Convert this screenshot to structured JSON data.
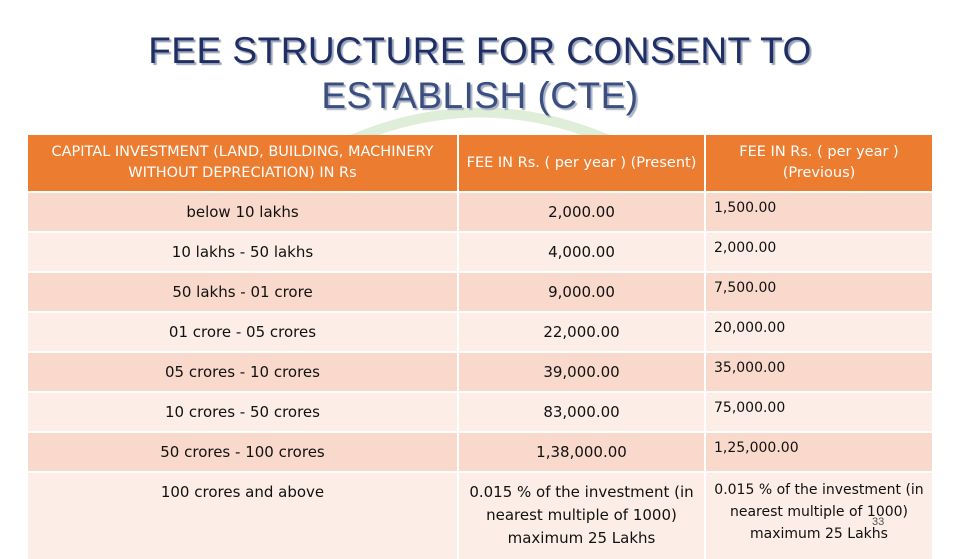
{
  "title": {
    "line1": "FEE STRUCTURE FOR CONSENT TO",
    "line2": "ESTABLISH (CTE)"
  },
  "table": {
    "headers": [
      "CAPITAL INVESTMENT (LAND, BUILDING, MACHINERY WITHOUT DEPRECIATION) IN Rs",
      "FEE IN Rs. ( per year ) (Present)",
      "FEE IN Rs. ( per year ) (Previous)"
    ],
    "rows": [
      {
        "investment": "below 10 lakhs",
        "present": "2,000.00",
        "previous": "1,500.00"
      },
      {
        "investment": "10 lakhs - 50 lakhs",
        "present": "4,000.00",
        "previous": "2,000.00"
      },
      {
        "investment": "50 lakhs - 01 crore",
        "present": "9,000.00",
        "previous": "7,500.00"
      },
      {
        "investment": "01 crore - 05 crores",
        "present": "22,000.00",
        "previous": "20,000.00"
      },
      {
        "investment": "05 crores - 10 crores",
        "present": "39,000.00",
        "previous": "35,000.00"
      },
      {
        "investment": "10 crores - 50 crores",
        "present": "83,000.00",
        "previous": "75,000.00"
      },
      {
        "investment": "50 crores - 100 crores",
        "present": "1,38,000.00",
        "previous": "1,25,000.00"
      },
      {
        "investment": "100 crores and above",
        "present": "0.015 % of the investment (in nearest multiple of 1000) maximum 25 Lakhs",
        "previous": "0.015 % of the investment (in nearest multiple of 1000) maximum 25 Lakhs"
      }
    ]
  },
  "page_number": "33",
  "colors": {
    "header_bg": "#ec7c30",
    "row_odd": "#f8d9cb",
    "row_even": "#fcede6",
    "title": "#1f2f66"
  }
}
